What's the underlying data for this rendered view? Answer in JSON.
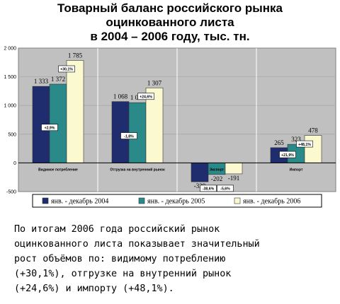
{
  "title_lines": [
    "Товарный баланс российского рынка",
    "оцинкованного листа",
    "в 2004 – 2006 году, тыс. тн."
  ],
  "chart_data": {
    "type": "bar",
    "categories": [
      "Видимое потребление",
      "Отгрузка на внутренний рынок",
      "Экспорт",
      "Импорт"
    ],
    "series": [
      {
        "name": "янв. - декабрь 2004",
        "values": [
          1333,
          1068,
          -329,
          265
        ],
        "value_labels": [
          "1 333",
          "1 068",
          "-329",
          "265"
        ],
        "color": "#1f2d6e"
      },
      {
        "name": "янв. - декабрь 2005",
        "values": [
          1372,
          1049,
          -202,
          323
        ],
        "value_labels": [
          "1 372",
          "1 049",
          "-202",
          "323"
        ],
        "color": "#2a8a8a"
      },
      {
        "name": "янв. - декабрь 2006",
        "values": [
          1785,
          1307,
          -191,
          478
        ],
        "value_labels": [
          "1 785",
          "1 307",
          "-191",
          "478"
        ],
        "color": "#fbf9cf"
      }
    ],
    "change_labels": [
      [
        "+2,9%",
        "-1,8%",
        "-38,6%",
        "+21,9%"
      ],
      [
        "+30,1%",
        "+24,6%",
        "-5,6%",
        "+48,1%"
      ]
    ],
    "ylim": [
      -500,
      2000
    ],
    "yticks": [
      -500,
      0,
      500,
      1000,
      1500,
      2000
    ],
    "ytick_labels": [
      "-500",
      "0",
      "500",
      "1 000",
      "1 500",
      "2 000"
    ],
    "plot_background": "#c0c0c0",
    "grid": true,
    "legend_position": "bottom"
  },
  "description_lines": [
    "По итогам 2006 года российский рынок",
    "оцинкованного листа показывает значительный",
    "рост объёмов по: видимому потреблению",
    "(+30,1%), отгрузке на внутренний рынок",
    "(+24,6%) и импорту (+48,1%)."
  ]
}
